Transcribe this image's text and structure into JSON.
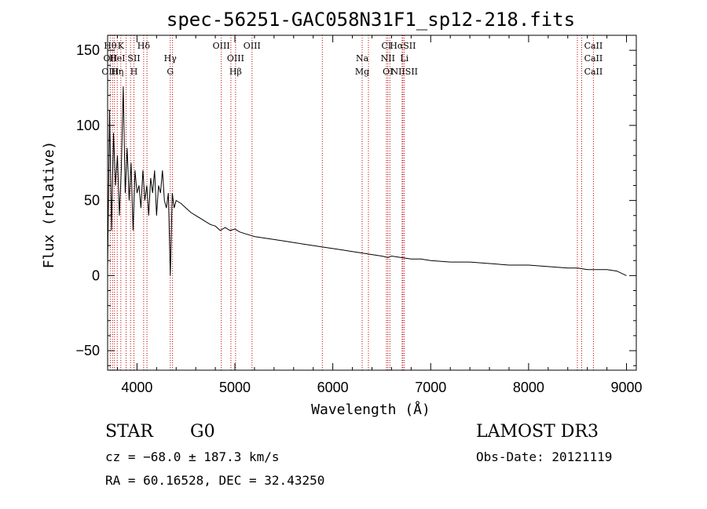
{
  "chart_data": {
    "type": "line",
    "title": "spec-56251-GAC058N31F1_sp12-218.fits",
    "xlabel": "Wavelength (Å)",
    "ylabel": "Flux (relative)",
    "xlim": [
      3700,
      9100
    ],
    "ylim": [
      -63,
      160
    ],
    "xticks": [
      4000,
      5000,
      6000,
      7000,
      8000,
      9000
    ],
    "yticks": [
      -50,
      0,
      50,
      100,
      150
    ],
    "series": [
      {
        "name": "spectrum",
        "x": [
          3700,
          3720,
          3740,
          3760,
          3780,
          3800,
          3820,
          3840,
          3860,
          3880,
          3900,
          3920,
          3940,
          3960,
          3980,
          4000,
          4020,
          4040,
          4060,
          4080,
          4100,
          4120,
          4140,
          4160,
          4180,
          4200,
          4220,
          4240,
          4260,
          4280,
          4300,
          4320,
          4340,
          4360,
          4380,
          4400,
          4450,
          4500,
          4550,
          4600,
          4650,
          4700,
          4750,
          4800,
          4850,
          4900,
          4950,
          5000,
          5050,
          5100,
          5150,
          5200,
          5300,
          5400,
          5500,
          5600,
          5700,
          5800,
          5900,
          6000,
          6100,
          6200,
          6300,
          6400,
          6500,
          6563,
          6600,
          6700,
          6800,
          6900,
          7000,
          7200,
          7400,
          7600,
          7800,
          8000,
          8200,
          8400,
          8500,
          8600,
          8700,
          8800,
          8900,
          9000
        ],
        "y": [
          5,
          110,
          30,
          95,
          60,
          80,
          40,
          70,
          126,
          55,
          85,
          50,
          75,
          30,
          70,
          55,
          60,
          45,
          70,
          50,
          60,
          40,
          65,
          55,
          70,
          40,
          60,
          55,
          70,
          50,
          45,
          55,
          0,
          55,
          45,
          50,
          48,
          45,
          42,
          40,
          38,
          36,
          34,
          33,
          30,
          32,
          30,
          31,
          29,
          28,
          27,
          26,
          25,
          24,
          23,
          22,
          21,
          20,
          19,
          18,
          17,
          16,
          15,
          14,
          13,
          12,
          13,
          12,
          11,
          11,
          10,
          9,
          9,
          8,
          7,
          7,
          6,
          5,
          5,
          4,
          4,
          4,
          3,
          0
        ]
      }
    ],
    "line_annotations": {
      "top_row": [
        "Hθ",
        "K",
        "Hδ",
        "OIII",
        "OIII",
        "CI",
        "HαSII",
        "CaII"
      ],
      "mid_row": [
        "OII",
        "HeI",
        "SII",
        "Hγ",
        "OIII",
        "Na",
        "NII",
        "Li",
        "CaII"
      ],
      "bottom_row": [
        "OIII",
        "Hη",
        "H",
        "G",
        "Hβ",
        "Mg",
        "OI",
        "NIISII",
        "CaII"
      ],
      "wavelengths": [
        3727,
        3750,
        3770,
        3798,
        3835,
        3889,
        3934,
        3969,
        4068,
        4102,
        4340,
        4363,
        4861,
        4959,
        5007,
        5175,
        5893,
        6300,
        6364,
        6548,
        6563,
        6583,
        6708,
        6716,
        6731,
        8498,
        8542,
        8662
      ]
    }
  },
  "info": {
    "object_class": "STAR",
    "subclass": "G0",
    "survey": "LAMOST DR3",
    "redshift": "cz = −68.0 ± 187.3 km/s",
    "obs_date": "Obs-Date: 20121119",
    "coords": "RA =  60.16528, DEC =  32.43250"
  }
}
